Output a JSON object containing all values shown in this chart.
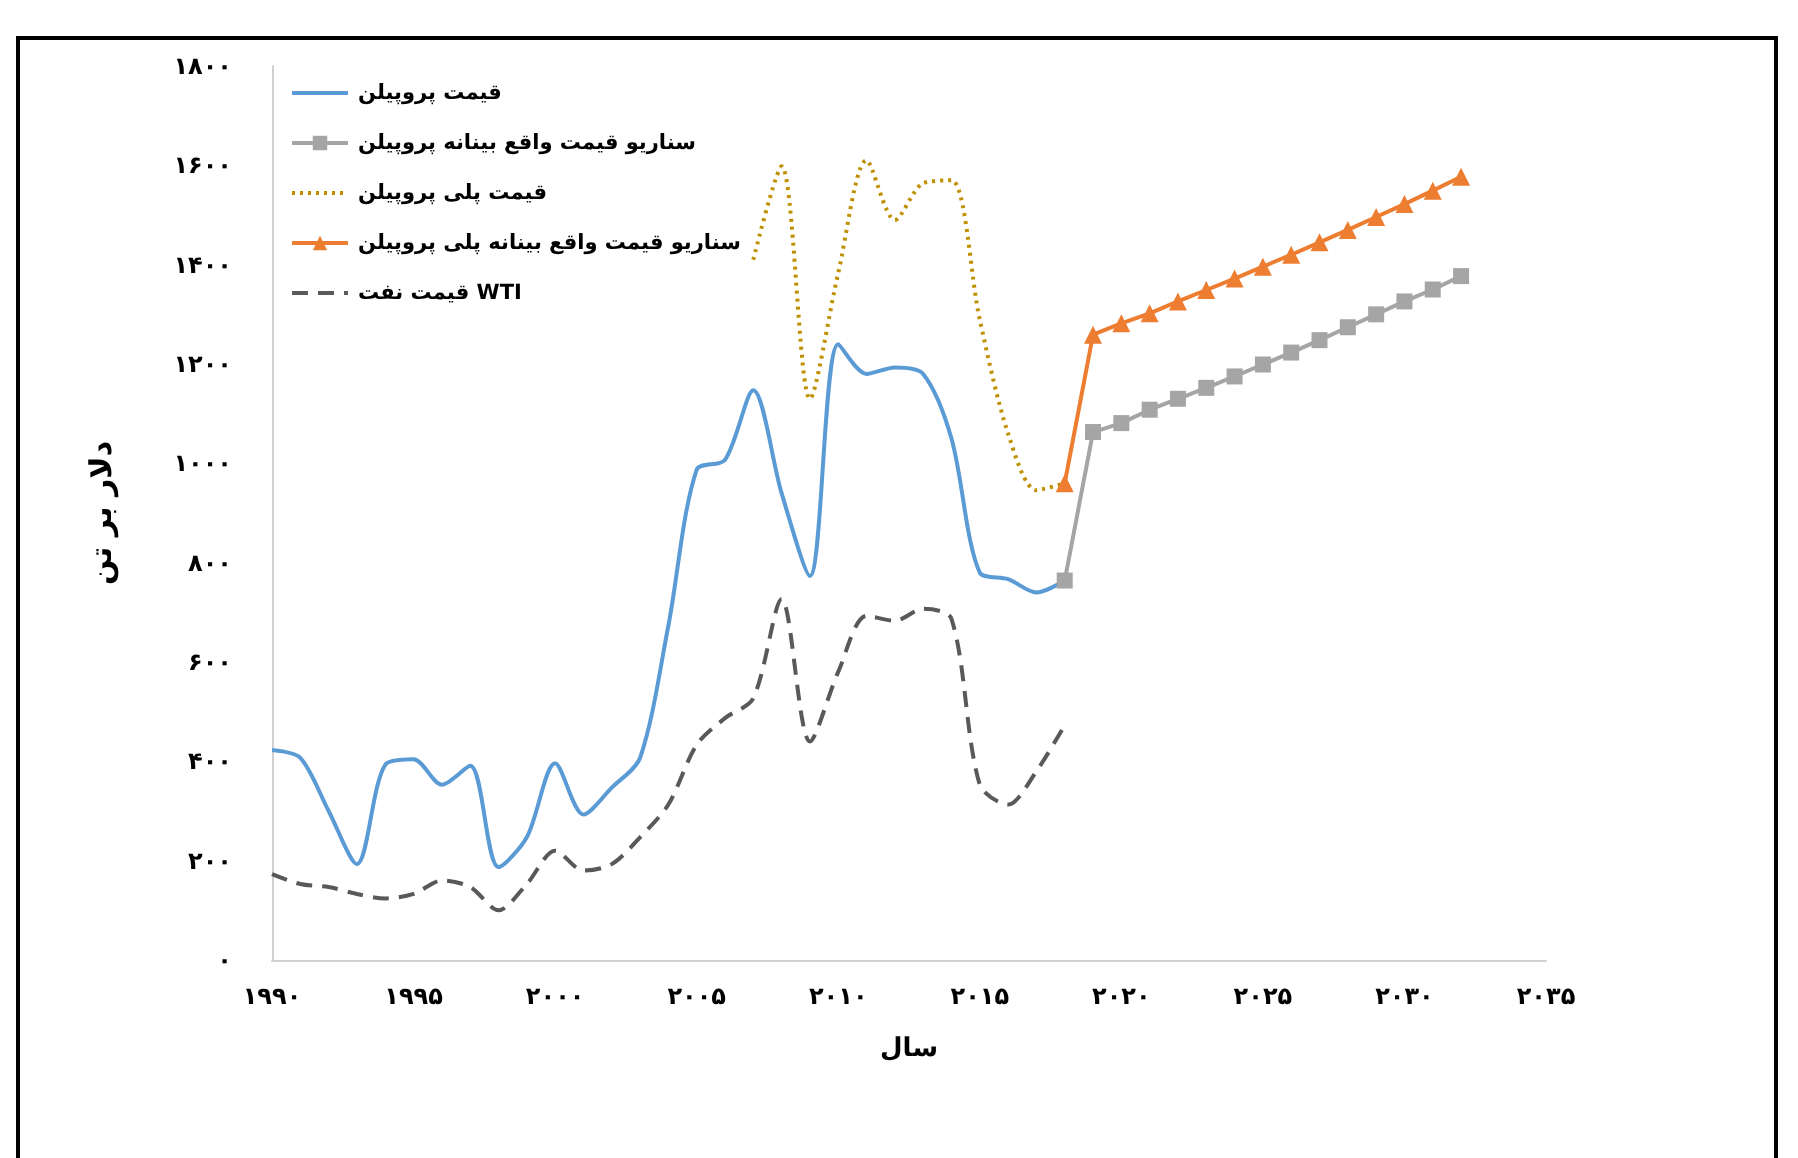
{
  "chart_data": {
    "type": "line",
    "xlabel": "سال",
    "ylabel": "دلار بر تن",
    "xlim": [
      1990,
      2035
    ],
    "xticks": [
      {
        "value": 1990,
        "label": "۱۹۹۰"
      },
      {
        "value": 1995,
        "label": "۱۹۹۵"
      },
      {
        "value": 2000,
        "label": "۲۰۰۰"
      },
      {
        "value": 2005,
        "label": "۲۰۰۵"
      },
      {
        "value": 2010,
        "label": "۲۰۱۰"
      },
      {
        "value": 2015,
        "label": "۲۰۱۵"
      },
      {
        "value": 2020,
        "label": "۲۰۲۰"
      },
      {
        "value": 2025,
        "label": "۲۰۲۵"
      },
      {
        "value": 2030,
        "label": "۲۰۳۰"
      },
      {
        "value": 2035,
        "label": "۲۰۳۵"
      }
    ],
    "ylim": [
      0,
      1800
    ],
    "yticks": [
      {
        "value": 0,
        "label": "۰"
      },
      {
        "value": 200,
        "label": "۲۰۰"
      },
      {
        "value": 400,
        "label": "۴۰۰"
      },
      {
        "value": 600,
        "label": "۶۰۰"
      },
      {
        "value": 800,
        "label": "۸۰۰"
      },
      {
        "value": 1000,
        "label": "۱۰۰۰"
      },
      {
        "value": 1200,
        "label": "۱۲۰۰"
      },
      {
        "value": 1400,
        "label": "۱۴۰۰"
      },
      {
        "value": 1600,
        "label": "۱۶۰۰"
      },
      {
        "value": 1800,
        "label": "۱۸۰۰"
      }
    ],
    "grid": false,
    "legend": "top left",
    "series": [
      {
        "name": "قیمت پروپیلن",
        "color": "#5b9bd5",
        "line_style": "solid",
        "marker": "none",
        "x": [
          1990,
          1991,
          1992,
          1993,
          1994,
          1995,
          1996,
          1997,
          1998,
          1999,
          2000,
          2001,
          2002,
          2003,
          2004,
          2005,
          2006,
          2007,
          2008,
          2009,
          2010,
          2011,
          2012,
          2013,
          2014,
          2015,
          2016,
          2017,
          2018
        ],
        "values": [
          423,
          407,
          300,
          193,
          393,
          404,
          353,
          391,
          187,
          247,
          396,
          293,
          347,
          407,
          673,
          987,
          1007,
          1147,
          940,
          773,
          1240,
          1180,
          1193,
          1180,
          1050,
          780,
          767,
          740,
          764
        ]
      },
      {
        "name": "سناریو قیمت واقع بینانه پروپیلن",
        "color": "#a5a5a5",
        "line_style": "solid",
        "marker": "square",
        "x": [
          2018,
          2019,
          2020,
          2021,
          2022,
          2023,
          2024,
          2025,
          2026,
          2027,
          2028,
          2029,
          2030,
          2031,
          2032
        ],
        "values": [
          764,
          1063,
          1081,
          1108,
          1130,
          1152,
          1175,
          1199,
          1223,
          1248,
          1274,
          1300,
          1326,
          1350,
          1377
        ]
      },
      {
        "name": "قیمت پلی پروپیلن",
        "color": "#bf9000",
        "line_style": "dotted",
        "marker": "none",
        "x": [
          2007,
          2008,
          2009,
          2010,
          2011,
          2012,
          2013,
          2014,
          2015,
          2016,
          2017,
          2018
        ],
        "values": [
          1410,
          1598,
          1130,
          1383,
          1610,
          1490,
          1564,
          1570,
          1289,
          1060,
          946,
          960
        ]
      },
      {
        "name": "سناریو قیمت واقع بینانه پلی پروپیلن",
        "color": "#ed7d31",
        "line_style": "solid",
        "marker": "triangle",
        "x": [
          2018,
          2019,
          2020,
          2021,
          2022,
          2023,
          2024,
          2025,
          2026,
          2027,
          2028,
          2029,
          2030,
          2031,
          2032
        ],
        "values": [
          960,
          1259,
          1282,
          1302,
          1326,
          1349,
          1372,
          1396,
          1420,
          1445,
          1470,
          1496,
          1522,
          1549,
          1577
        ]
      },
      {
        "name": "قیمت نفت WTI",
        "color": "#595959",
        "line_style": "dashed",
        "marker": "none",
        "x": [
          1990,
          1991,
          1992,
          1993,
          1994,
          1995,
          1996,
          1997,
          1998,
          1999,
          2000,
          2001,
          2002,
          2003,
          2004,
          2005,
          2006,
          2007,
          2008,
          2009,
          2010,
          2011,
          2012,
          2013,
          2014,
          2015,
          2016,
          2017,
          2018
        ],
        "values": [
          173,
          153,
          147,
          133,
          124,
          133,
          160,
          147,
          100,
          153,
          220,
          180,
          193,
          247,
          313,
          433,
          487,
          527,
          727,
          440,
          580,
          693,
          683,
          707,
          687,
          353,
          313,
          380,
          473
        ]
      }
    ]
  }
}
